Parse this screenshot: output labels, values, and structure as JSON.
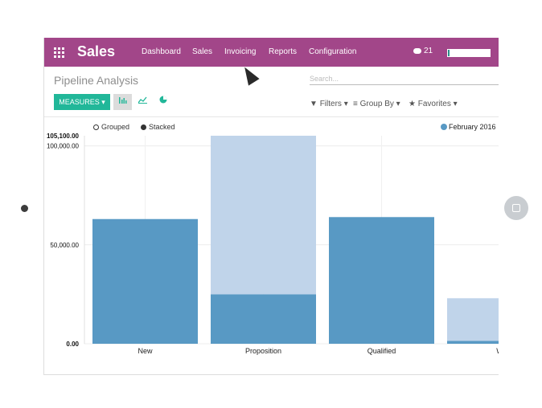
{
  "app": {
    "title": "Sales"
  },
  "menu": [
    "Dashboard",
    "Sales",
    "Invoicing",
    "Reports",
    "Configuration"
  ],
  "chat": {
    "count": "21"
  },
  "breadcrumb": "Pipeline Analysis",
  "search": {
    "placeholder": "Search..."
  },
  "toolbar": {
    "measures_label": "MEASURES ▾"
  },
  "filters": {
    "filters": "Filters",
    "group_by": "Group By",
    "favorites": "Favorites"
  },
  "legend_controls": {
    "grouped": "Grouped",
    "stacked": "Stacked"
  },
  "colors": {
    "brand": "#a24689",
    "primary_button": "#21b799",
    "series_dark": "#5899c4",
    "series_light": "#c0d4ea"
  },
  "chart_data": {
    "type": "bar",
    "stacked": true,
    "categories": [
      "New",
      "Proposition",
      "Qualified",
      "W"
    ],
    "series": [
      {
        "name": "February 2016",
        "color": "#5899c4",
        "values": [
          63000,
          25000,
          64000,
          1500
        ]
      },
      {
        "color": "#c0d4ea",
        "values": [
          0,
          80100,
          0,
          21500
        ]
      }
    ],
    "y_ticks": [
      "0.00",
      "50,000.00",
      "100,000.00"
    ],
    "y_max_label": "105,100.00",
    "ylim": [
      0,
      105100
    ],
    "grid": true,
    "legend_position": "top-right"
  }
}
